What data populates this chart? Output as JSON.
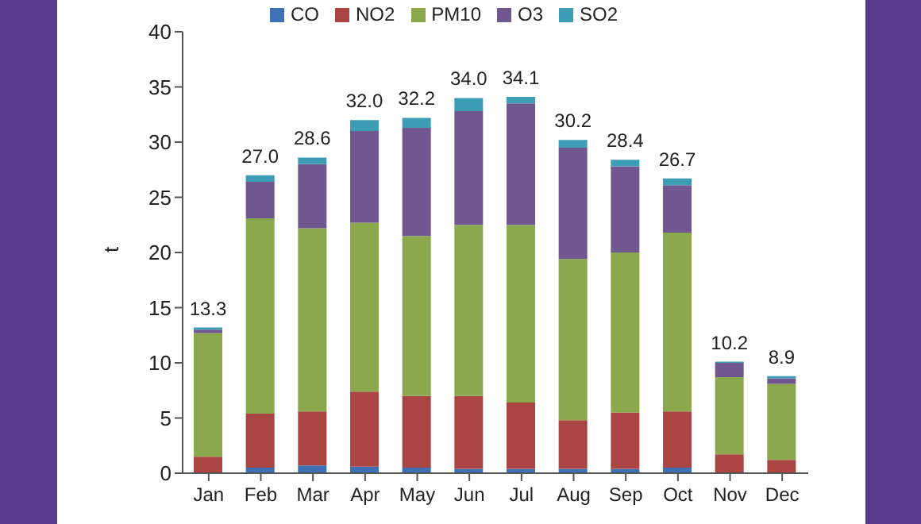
{
  "chart_data": {
    "type": "bar",
    "stacked": true,
    "ylabel": "t",
    "categories": [
      "Jan",
      "Feb",
      "Mar",
      "Apr",
      "May",
      "Jun",
      "Jul",
      "Aug",
      "Sep",
      "Oct",
      "Nov",
      "Dec"
    ],
    "series": [
      {
        "name": "CO",
        "color": "#3f6fb5",
        "values": [
          null,
          0.5,
          0.7,
          0.6,
          0.5,
          0.4,
          0.4,
          0.4,
          0.4,
          0.5,
          null,
          null
        ]
      },
      {
        "name": "NO2",
        "color": "#ab4544",
        "values": [
          1.5,
          4.9,
          4.9,
          6.8,
          6.5,
          6.6,
          6.0,
          4.4,
          5.1,
          5.1,
          1.7,
          1.2
        ]
      },
      {
        "name": "PM10",
        "color": "#8ba84c",
        "values": [
          11.2,
          17.7,
          16.6,
          15.3,
          14.5,
          15.5,
          16.1,
          14.6,
          14.5,
          16.2,
          7.0,
          6.9
        ]
      },
      {
        "name": "O3",
        "color": "#70578f",
        "values": [
          0.3,
          3.3,
          5.8,
          8.3,
          9.8,
          10.3,
          11.0,
          10.1,
          7.8,
          4.3,
          1.3,
          0.5
        ]
      },
      {
        "name": "SO2",
        "color": "#3d9db5",
        "values": [
          0.2,
          0.6,
          0.6,
          1.0,
          0.9,
          1.2,
          0.6,
          0.7,
          0.6,
          0.6,
          0.1,
          0.2
        ]
      }
    ],
    "totals": [
      "13.3",
      "27.0",
      "28.6",
      "32.0",
      "32.2",
      "34.0",
      "34.1",
      "30.2",
      "28.4",
      "26.7",
      "10.2",
      "8.9"
    ],
    "ylim": [
      0,
      40
    ],
    "yticks": [
      0,
      5,
      10,
      15,
      20,
      25,
      30,
      35,
      40
    ],
    "grid": false,
    "legend": "top"
  }
}
